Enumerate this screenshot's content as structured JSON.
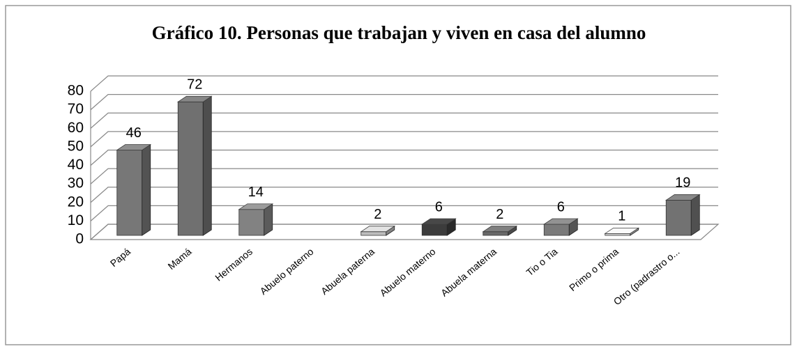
{
  "chart_data": {
    "type": "bar3d",
    "title": "Gráfico 10. Personas que trabajan y viven en casa del alumno",
    "categories": [
      "Papá",
      "Mamá",
      "Hermanos",
      "Abuelo paterno",
      "Abuela paterna",
      "Abuelo materno",
      "Abuela materna",
      "Tio o Tia",
      "Primo o prima",
      "Otro (padrastro o..."
    ],
    "values": [
      46,
      72,
      14,
      null,
      2,
      6,
      2,
      6,
      1,
      19
    ],
    "colors": [
      "#777777",
      "#707070",
      "#828282",
      "#777777",
      "#bdbdbd",
      "#3c3c3c",
      "#6a6a6a",
      "#7a7a7a",
      "#d0d0d0",
      "#727272"
    ],
    "ylim": [
      0,
      80
    ],
    "yticks": [
      0,
      10,
      20,
      30,
      40,
      50,
      60,
      70,
      80
    ],
    "grid": true
  }
}
